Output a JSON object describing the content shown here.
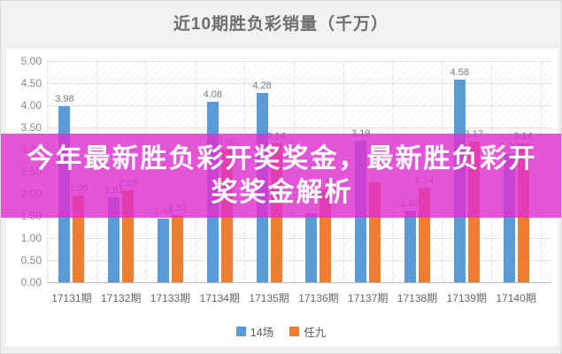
{
  "banner": {
    "line1": "今年最新胜负彩开奖奖金，最新胜负彩开",
    "line2": "奖奖金解析",
    "bg_color": "#df30ce",
    "text_color": "#ffffff"
  },
  "chart_data": {
    "type": "bar",
    "title": "近10期胜负彩销量（千万）",
    "categories": [
      "17131期",
      "17132期",
      "17133期",
      "17134期",
      "17135期",
      "17136期",
      "17137期",
      "17138期",
      "17139期",
      "17140期"
    ],
    "series": [
      {
        "name": "14场",
        "color": "#5b9bd5",
        "values": [
          3.98,
          1.91,
          1.44,
          4.08,
          4.28,
          1.56,
          3.19,
          1.62,
          4.58,
          2.9
        ],
        "labels": [
          "3.98",
          "1.91",
          "1.44",
          "4.08",
          "4.28",
          "",
          "3.19",
          "1.62",
          "4.58",
          "2.90"
        ]
      },
      {
        "name": "任九",
        "color": "#ed7d31",
        "values": [
          1.95,
          2.08,
          1.52,
          3.0,
          3.14,
          2.1,
          2.26,
          2.14,
          3.17,
          3.14
        ],
        "labels": [
          "1.95",
          "2.08",
          "1.52",
          "3.00",
          "3.14",
          "2.10",
          "",
          "2.14",
          "3.17",
          "3.14"
        ]
      }
    ],
    "ylim": [
      0,
      5
    ],
    "yticks": [
      "5.00",
      "4.50",
      "4.00",
      "3.50",
      "3.00",
      "2.50",
      "2.00",
      "1.50",
      "1.00",
      "0.50",
      "0.00"
    ],
    "grid": true,
    "legend_position": "bottom"
  }
}
